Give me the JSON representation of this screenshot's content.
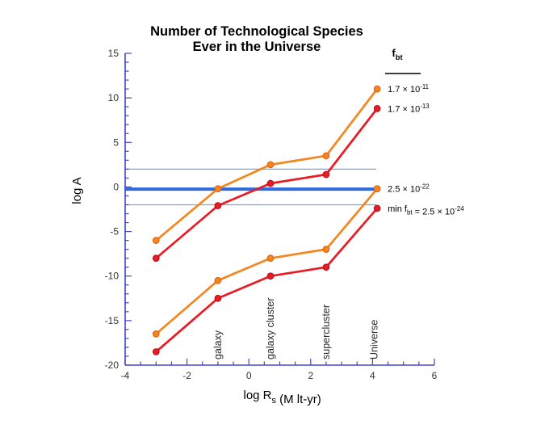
{
  "page": {
    "background": "#ffffff"
  },
  "chart_data": {
    "type": "line",
    "title_lines": [
      "Number of Technological Species",
      "Ever in the Universe"
    ],
    "ylabel": "log A",
    "xlabel_parts": [
      {
        "t": "log R"
      },
      {
        "t": "s",
        "sub": true
      },
      {
        "t": " (M lt-yr)"
      }
    ],
    "xlim": [
      -4,
      6
    ],
    "ylim": [
      -20,
      15
    ],
    "x_major_step": 2,
    "x_minor_step": 0.5,
    "y_major_step": 5,
    "y_minor_step": 1,
    "x_tick_labels": [
      "-4",
      "-2",
      "0",
      "2",
      "4",
      "6"
    ],
    "y_tick_labels": [
      "15",
      "10",
      "5",
      "0",
      "-5",
      "-10",
      "-15",
      "-20"
    ],
    "grid": "off",
    "legend_position": "right-of-final-points",
    "legend_header": {
      "symbol": "f",
      "subscript": "bt"
    },
    "series": [
      {
        "name": "f_bt = 1.7x10^-11",
        "color": "#f5861f",
        "edge_color": "#dd5f12",
        "x": [
          -3,
          -1,
          0.7,
          2.5,
          4.15
        ],
        "y": [
          -6,
          -0.2,
          2.5,
          3.5,
          11
        ],
        "legend_parts": [
          {
            "t": "1.7 × 10"
          },
          {
            "t": "-11",
            "sup": true
          }
        ]
      },
      {
        "name": "f_bt = 1.7x10^-13",
        "color": "#e91c25",
        "edge_color": "#b80d14",
        "x": [
          -3,
          -1,
          0.7,
          2.5,
          4.15
        ],
        "y": [
          -8,
          -2.1,
          0.4,
          1.4,
          8.8
        ],
        "legend_parts": [
          {
            "t": "1.7 × 10"
          },
          {
            "t": "-13",
            "sup": true
          }
        ]
      },
      {
        "name": "f_bt = 2.5x10^-22",
        "color": "#f5861f",
        "edge_color": "#dd5f12",
        "x": [
          -3,
          -1,
          0.7,
          2.5,
          4.15
        ],
        "y": [
          -16.5,
          -10.5,
          -8,
          -7,
          -0.2
        ],
        "legend_parts": [
          {
            "t": "2.5 × 10"
          },
          {
            "t": "-22",
            "sup": true
          }
        ]
      },
      {
        "name": "min f_bt = 2.5x10^-24",
        "color": "#e91c25",
        "edge_color": "#b80d14",
        "x": [
          -3,
          -1,
          0.7,
          2.5,
          4.15
        ],
        "y": [
          -18.5,
          -12.5,
          -10,
          -9,
          -2.4
        ],
        "legend_parts": [
          {
            "t": "min f"
          },
          {
            "t": "bt",
            "sub": true
          },
          {
            "t": " = 2.5 × 10"
          },
          {
            "t": "-24",
            "sup": true
          }
        ]
      }
    ],
    "reference_lines": [
      {
        "y": 2,
        "thickness": "thin",
        "color": "#7fa1d6",
        "x_start": -4,
        "x_end": 4.12
      },
      {
        "y": -0.25,
        "thickness": "thick",
        "color": "#2e6ae0",
        "x_start": -4,
        "x_end": 4.12
      },
      {
        "y": -2,
        "thickness": "thin",
        "color": "#7fa1d6",
        "x_start": -4,
        "x_end": 4.12
      }
    ],
    "annotations": [
      {
        "text": "galaxy",
        "x": -1
      },
      {
        "text": "galaxy cluster",
        "x": 0.7
      },
      {
        "text": "supercluster",
        "x": 2.5
      },
      {
        "text": "Universe",
        "x": 4.05
      }
    ],
    "colors": {
      "axis": "#4545c8",
      "tick_label": "#333333",
      "orange_series": "#f5861f",
      "red_series": "#e91c25",
      "thick_rule": "#2e6ae0",
      "thin_rule": "#7fa1d6"
    }
  }
}
